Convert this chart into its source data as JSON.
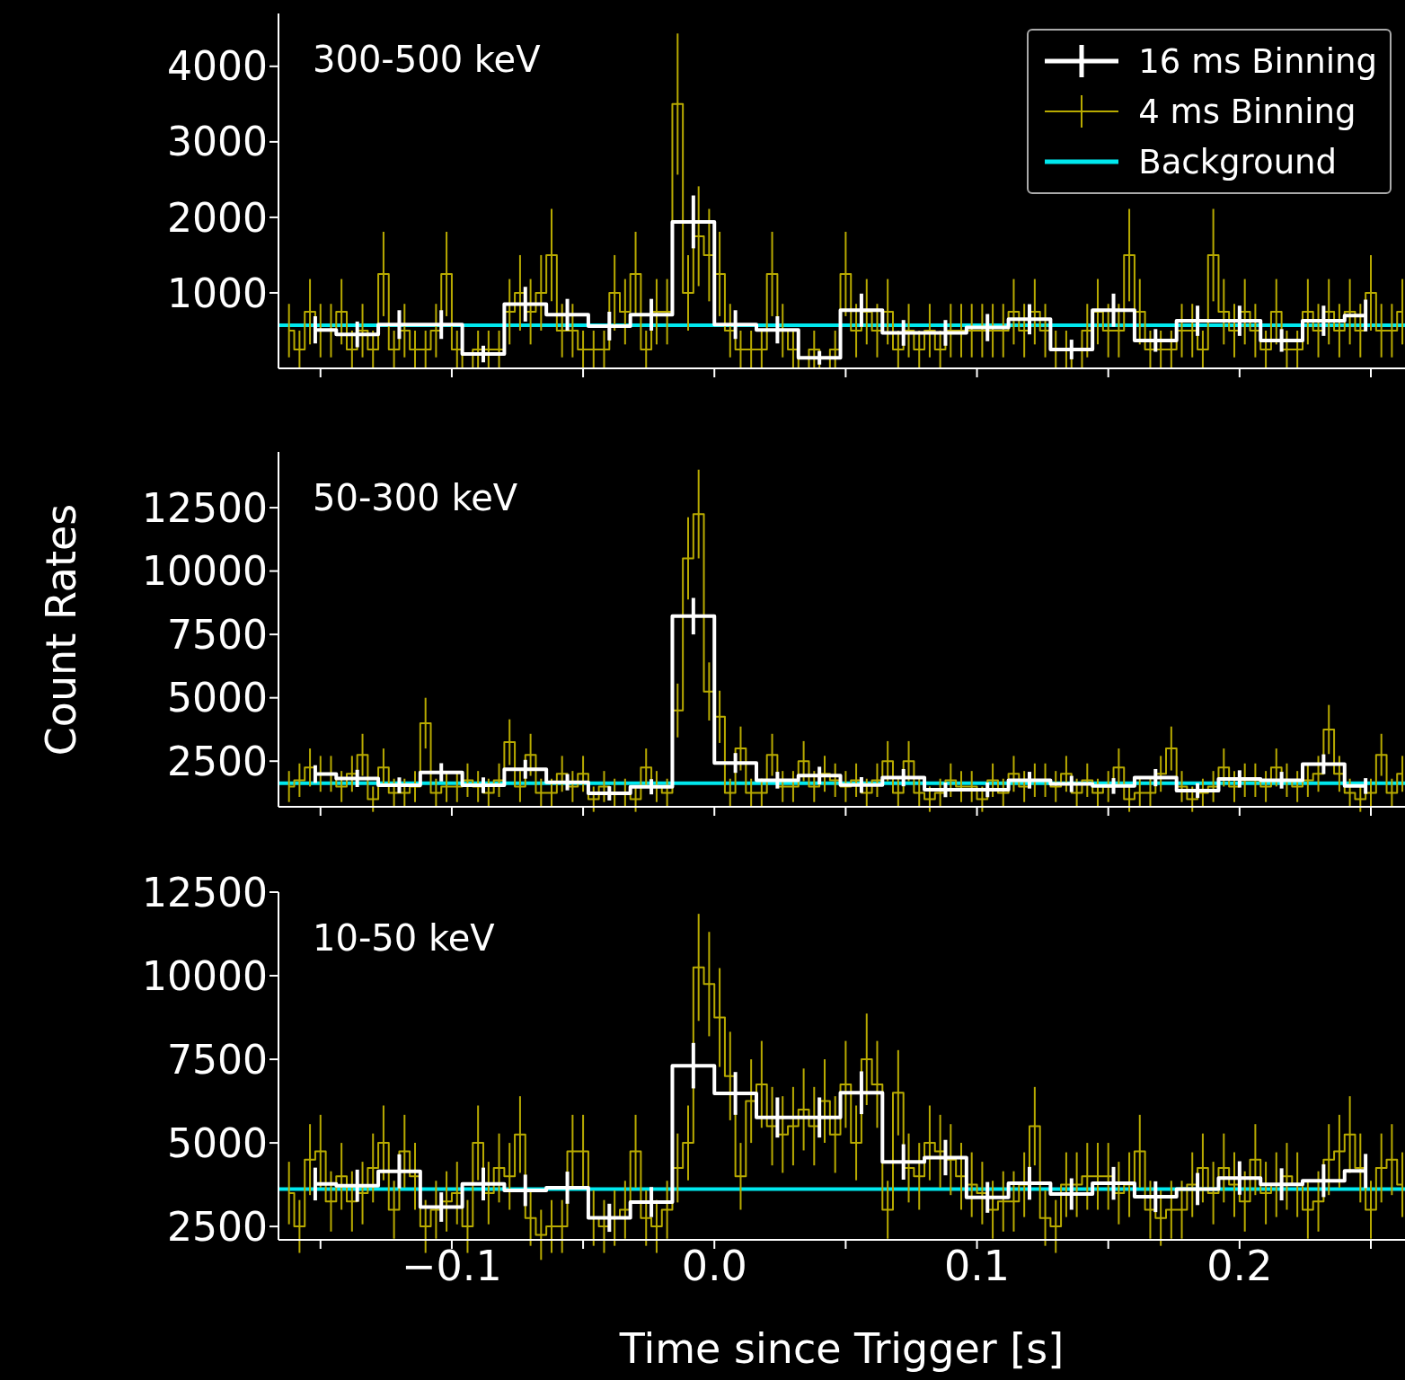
{
  "chart_data": [
    {
      "type": "step",
      "annotations": [
        "300-500 keV"
      ],
      "xlim": [
        -0.166,
        0.263
      ],
      "xticks": [
        -0.15,
        -0.1,
        -0.05,
        0,
        0.05,
        0.1,
        0.15,
        0.2,
        0.25
      ],
      "ylim": [
        0,
        4700
      ],
      "yticks": [
        1000,
        2000,
        3000,
        4000
      ],
      "tick_labels": "y",
      "legend": "top right",
      "series": [
        {
          "name": "16 ms Binning",
          "type": "step",
          "color": "#ffffff",
          "x": [
            -0.152,
            -0.136,
            -0.12,
            -0.104,
            -0.088,
            -0.072,
            -0.056,
            -0.04,
            -0.024,
            -0.008,
            0.008,
            0.024,
            0.04,
            0.056,
            0.072,
            0.088,
            0.104,
            0.12,
            0.136,
            0.152,
            0.168,
            0.184,
            0.2,
            0.216,
            0.232,
            0.248
          ],
          "values": [
            510,
            450,
            580,
            580,
            190,
            850,
            710,
            560,
            710,
            1940,
            580,
            510,
            140,
            770,
            470,
            470,
            540,
            650,
            250,
            770,
            370,
            630,
            630,
            370,
            630,
            700
          ],
          "errors": [
            180,
            170,
            190,
            190,
            110,
            230,
            210,
            190,
            210,
            350,
            190,
            180,
            90,
            220,
            170,
            170,
            180,
            200,
            130,
            220,
            150,
            200,
            200,
            150,
            200,
            210
          ]
        },
        {
          "name": "4 ms Binning",
          "type": "step",
          "color": "#b8aa00",
          "x": [
            -0.162,
            -0.158,
            -0.154,
            -0.15,
            -0.146,
            -0.142,
            -0.138,
            -0.134,
            -0.13,
            -0.126,
            -0.122,
            -0.118,
            -0.114,
            -0.11,
            -0.106,
            -0.102,
            -0.098,
            -0.094,
            -0.09,
            -0.086,
            -0.082,
            -0.078,
            -0.074,
            -0.07,
            -0.066,
            -0.062,
            -0.058,
            -0.054,
            -0.05,
            -0.046,
            -0.042,
            -0.038,
            -0.034,
            -0.03,
            -0.026,
            -0.022,
            -0.018,
            -0.014,
            -0.01,
            -0.006,
            -0.002,
            0.002,
            0.006,
            0.01,
            0.014,
            0.018,
            0.022,
            0.026,
            0.03,
            0.034,
            0.038,
            0.042,
            0.046,
            0.05,
            0.054,
            0.058,
            0.062,
            0.066,
            0.07,
            0.074,
            0.078,
            0.082,
            0.086,
            0.09,
            0.094,
            0.098,
            0.102,
            0.106,
            0.11,
            0.114,
            0.118,
            0.122,
            0.126,
            0.13,
            0.134,
            0.138,
            0.142,
            0.146,
            0.15,
            0.154,
            0.158,
            0.162,
            0.166,
            0.17,
            0.174,
            0.178,
            0.182,
            0.186,
            0.19,
            0.194,
            0.198,
            0.202,
            0.206,
            0.21,
            0.214,
            0.218,
            0.222,
            0.226,
            0.23,
            0.234,
            0.238,
            0.242,
            0.246,
            0.25,
            0.254,
            0.258,
            0.262
          ],
          "values": [
            500,
            250,
            750,
            500,
            500,
            750,
            250,
            500,
            250,
            1250,
            250,
            500,
            250,
            250,
            500,
            1250,
            250,
            0,
            250,
            250,
            250,
            750,
            1000,
            750,
            1000,
            1500,
            500,
            500,
            250,
            250,
            250,
            1000,
            750,
            1250,
            250,
            750,
            750,
            3500,
            1000,
            1750,
            1500,
            1250,
            500,
            250,
            250,
            250,
            1250,
            500,
            250,
            0,
            250,
            0,
            250,
            1250,
            500,
            750,
            500,
            750,
            250,
            500,
            250,
            500,
            250,
            500,
            500,
            500,
            500,
            500,
            500,
            750,
            500,
            750,
            500,
            250,
            250,
            0,
            500,
            750,
            500,
            500,
            1500,
            750,
            250,
            250,
            250,
            500,
            500,
            250,
            1500,
            750,
            500,
            750,
            500,
            250,
            750,
            250,
            250,
            750,
            500,
            750,
            500,
            750,
            500,
            1000,
            500,
            500,
            750
          ],
          "errors": [
            354,
            250,
            433,
            354,
            354,
            433,
            250,
            354,
            250,
            559,
            250,
            354,
            250,
            250,
            354,
            559,
            250,
            null,
            250,
            250,
            250,
            433,
            500,
            433,
            500,
            612,
            354,
            354,
            250,
            250,
            250,
            500,
            433,
            559,
            250,
            433,
            433,
            935,
            500,
            661,
            612,
            559,
            354,
            250,
            250,
            250,
            559,
            354,
            250,
            null,
            250,
            null,
            250,
            559,
            354,
            433,
            354,
            433,
            250,
            354,
            250,
            354,
            250,
            354,
            354,
            354,
            354,
            354,
            354,
            433,
            354,
            433,
            354,
            250,
            250,
            null,
            354,
            433,
            354,
            354,
            612,
            433,
            250,
            250,
            250,
            354,
            354,
            250,
            612,
            433,
            354,
            433,
            354,
            250,
            433,
            250,
            250,
            433,
            354,
            433,
            354,
            433,
            354,
            500,
            354,
            354,
            433
          ]
        },
        {
          "name": "Background",
          "type": "line",
          "color": "#00e8ee",
          "x": [
            -0.166,
            0.263
          ],
          "values": [
            570,
            570
          ]
        }
      ]
    },
    {
      "type": "step",
      "annotations": [
        "50-300 keV"
      ],
      "ylabel": "Count Rates",
      "xlim": [
        -0.166,
        0.263
      ],
      "xticks": [
        -0.15,
        -0.1,
        -0.05,
        0,
        0.05,
        0.1,
        0.15,
        0.2,
        0.25
      ],
      "ylim": [
        700,
        14700
      ],
      "yticks": [
        2500,
        5000,
        7500,
        10000,
        12500
      ],
      "tick_labels": "y",
      "series": [
        {
          "type": "step",
          "color": "#ffffff",
          "x": [
            -0.152,
            -0.136,
            -0.12,
            -0.104,
            -0.088,
            -0.072,
            -0.056,
            -0.04,
            -0.024,
            -0.008,
            0.008,
            0.024,
            0.04,
            0.056,
            0.072,
            0.088,
            0.104,
            0.12,
            0.136,
            0.152,
            0.168,
            0.184,
            0.2,
            0.216,
            0.232,
            0.248
          ],
          "values": [
            1990,
            1820,
            1550,
            2060,
            1550,
            2180,
            1670,
            1230,
            1490,
            8220,
            2430,
            1750,
            1930,
            1560,
            1850,
            1370,
            1370,
            1750,
            1600,
            1520,
            1850,
            1340,
            1800,
            1750,
            2380,
            1520
          ],
          "errors": [
            350,
            340,
            310,
            360,
            310,
            370,
            320,
            280,
            300,
            720,
            390,
            330,
            350,
            310,
            340,
            290,
            290,
            330,
            320,
            310,
            340,
            290,
            340,
            330,
            390,
            310
          ]
        },
        {
          "type": "step",
          "color": "#b8aa00",
          "x": [
            -0.162,
            -0.158,
            -0.154,
            -0.15,
            -0.146,
            -0.142,
            -0.138,
            -0.134,
            -0.13,
            -0.126,
            -0.122,
            -0.118,
            -0.114,
            -0.11,
            -0.106,
            -0.102,
            -0.098,
            -0.094,
            -0.09,
            -0.086,
            -0.082,
            -0.078,
            -0.074,
            -0.07,
            -0.066,
            -0.062,
            -0.058,
            -0.054,
            -0.05,
            -0.046,
            -0.042,
            -0.038,
            -0.034,
            -0.03,
            -0.026,
            -0.022,
            -0.018,
            -0.014,
            -0.01,
            -0.006,
            -0.002,
            0.002,
            0.006,
            0.01,
            0.014,
            0.018,
            0.022,
            0.026,
            0.03,
            0.034,
            0.038,
            0.042,
            0.046,
            0.05,
            0.054,
            0.058,
            0.062,
            0.066,
            0.07,
            0.074,
            0.078,
            0.082,
            0.086,
            0.09,
            0.094,
            0.098,
            0.102,
            0.106,
            0.11,
            0.114,
            0.118,
            0.122,
            0.126,
            0.13,
            0.134,
            0.138,
            0.142,
            0.146,
            0.15,
            0.154,
            0.158,
            0.162,
            0.166,
            0.17,
            0.174,
            0.178,
            0.182,
            0.186,
            0.19,
            0.194,
            0.198,
            0.202,
            0.206,
            0.21,
            0.214,
            0.218,
            0.222,
            0.226,
            0.23,
            0.234,
            0.238,
            0.242,
            0.246,
            0.25,
            0.254,
            0.258,
            0.262
          ],
          "values": [
            1500,
            1750,
            2250,
            2000,
            2000,
            1500,
            2000,
            2750,
            1000,
            2250,
            1250,
            1250,
            1500,
            4000,
            1250,
            1500,
            1500,
            1750,
            1500,
            1250,
            1750,
            3250,
            1500,
            2750,
            1250,
            1250,
            2000,
            1500,
            2000,
            1000,
            1500,
            1250,
            1250,
            1000,
            2250,
            1500,
            1250,
            4500,
            10500,
            12250,
            5250,
            4250,
            1250,
            3000,
            1250,
            1250,
            2750,
            1500,
            1500,
            2500,
            1500,
            2000,
            1750,
            1500,
            1750,
            1250,
            1750,
            2500,
            1250,
            2500,
            1250,
            1000,
            1250,
            1750,
            1500,
            1500,
            1000,
            1750,
            1250,
            2000,
            1500,
            1750,
            1750,
            1500,
            2000,
            1250,
            1750,
            1250,
            1500,
            2250,
            1000,
            1250,
            1250,
            2000,
            3000,
            1500,
            1000,
            1250,
            1500,
            2250,
            1500,
            1750,
            1750,
            1500,
            2250,
            1750,
            1500,
            1750,
            2000,
            3750,
            2000,
            1250,
            1000,
            1250,
            2750,
            1250,
            2000
          ],
          "errors": [
            612,
            661,
            750,
            707,
            707,
            612,
            707,
            829,
            500,
            750,
            559,
            559,
            612,
            1000,
            559,
            612,
            612,
            661,
            612,
            559,
            661,
            901,
            612,
            829,
            559,
            559,
            707,
            612,
            707,
            500,
            612,
            559,
            559,
            500,
            750,
            612,
            559,
            1061,
            1620,
            1750,
            1146,
            1031,
            559,
            866,
            559,
            559,
            829,
            612,
            612,
            791,
            612,
            707,
            661,
            612,
            661,
            559,
            661,
            791,
            559,
            791,
            559,
            500,
            559,
            661,
            612,
            612,
            500,
            661,
            559,
            707,
            612,
            661,
            661,
            612,
            707,
            559,
            661,
            559,
            612,
            750,
            500,
            559,
            559,
            707,
            866,
            612,
            500,
            559,
            612,
            750,
            612,
            661,
            661,
            612,
            750,
            661,
            612,
            661,
            707,
            968,
            707,
            559,
            500,
            559,
            829,
            559,
            707
          ]
        },
        {
          "type": "line",
          "color": "#00e8ee",
          "x": [
            -0.166,
            0.263
          ],
          "values": [
            1630,
            1630
          ]
        }
      ]
    },
    {
      "type": "step",
      "annotations": [
        "10-50 keV"
      ],
      "xlabel": "Time since Trigger [s]",
      "xlim": [
        -0.166,
        0.263
      ],
      "xticks": [
        {
          "value": -0.15,
          "label": null
        },
        {
          "value": -0.1,
          "label": "−0.1"
        },
        {
          "value": -0.05,
          "label": null
        },
        {
          "value": 0,
          "label": "0.0"
        },
        {
          "value": 0.05,
          "label": null
        },
        0.1,
        {
          "value": 0.15,
          "label": null
        },
        0.2,
        {
          "value": 0.25,
          "label": null
        }
      ],
      "ylim": [
        2100,
        12500
      ],
      "yticks": [
        2500,
        5000,
        7500,
        10000,
        12500
      ],
      "series": [
        {
          "type": "step",
          "color": "#ffffff",
          "x": [
            -0.152,
            -0.136,
            -0.12,
            -0.104,
            -0.088,
            -0.072,
            -0.056,
            -0.04,
            -0.024,
            -0.008,
            0.008,
            0.024,
            0.04,
            0.056,
            0.072,
            0.088,
            0.104,
            0.12,
            0.136,
            0.152,
            0.168,
            0.184,
            0.2,
            0.216,
            0.232,
            0.248
          ],
          "values": [
            3770,
            3720,
            4150,
            3080,
            3770,
            3580,
            3660,
            2760,
            3230,
            7310,
            6480,
            5760,
            5760,
            6500,
            4430,
            4560,
            3370,
            3790,
            3470,
            3790,
            3390,
            3620,
            3950,
            3760,
            3870,
            4160
          ],
          "errors": [
            490,
            480,
            510,
            440,
            490,
            470,
            480,
            420,
            450,
            680,
            640,
            600,
            600,
            640,
            530,
            530,
            460,
            490,
            470,
            490,
            460,
            480,
            500,
            480,
            490,
            510
          ]
        },
        {
          "type": "step",
          "color": "#b8aa00",
          "x": [
            -0.162,
            -0.158,
            -0.154,
            -0.15,
            -0.146,
            -0.142,
            -0.138,
            -0.134,
            -0.13,
            -0.126,
            -0.122,
            -0.118,
            -0.114,
            -0.11,
            -0.106,
            -0.102,
            -0.098,
            -0.094,
            -0.09,
            -0.086,
            -0.082,
            -0.078,
            -0.074,
            -0.07,
            -0.066,
            -0.062,
            -0.058,
            -0.054,
            -0.05,
            -0.046,
            -0.042,
            -0.038,
            -0.034,
            -0.03,
            -0.026,
            -0.022,
            -0.018,
            -0.014,
            -0.01,
            -0.006,
            -0.002,
            0.002,
            0.006,
            0.01,
            0.014,
            0.018,
            0.022,
            0.026,
            0.03,
            0.034,
            0.038,
            0.042,
            0.046,
            0.05,
            0.054,
            0.058,
            0.062,
            0.066,
            0.07,
            0.074,
            0.078,
            0.082,
            0.086,
            0.09,
            0.094,
            0.098,
            0.102,
            0.106,
            0.11,
            0.114,
            0.118,
            0.122,
            0.126,
            0.13,
            0.134,
            0.138,
            0.142,
            0.146,
            0.15,
            0.154,
            0.158,
            0.162,
            0.166,
            0.17,
            0.174,
            0.178,
            0.182,
            0.186,
            0.19,
            0.194,
            0.198,
            0.202,
            0.206,
            0.21,
            0.214,
            0.218,
            0.222,
            0.226,
            0.23,
            0.234,
            0.238,
            0.242,
            0.246,
            0.25,
            0.254,
            0.258,
            0.262
          ],
          "values": [
            3500,
            2500,
            4500,
            4750,
            3250,
            4000,
            3250,
            3500,
            4250,
            5000,
            3000,
            4750,
            4000,
            2500,
            3000,
            3250,
            3500,
            2500,
            5000,
            3500,
            4250,
            4000,
            5250,
            2750,
            2250,
            2500,
            2500,
            4750,
            4750,
            2750,
            2500,
            2750,
            3000,
            4750,
            2750,
            2500,
            3000,
            4250,
            5000,
            10250,
            9750,
            8750,
            7000,
            4000,
            6250,
            6750,
            5500,
            5250,
            5500,
            6000,
            5500,
            6250,
            5250,
            6750,
            5000,
            7500,
            6750,
            3000,
            6500,
            4250,
            4000,
            5000,
            4750,
            4500,
            4000,
            3750,
            3500,
            3000,
            3250,
            3250,
            3750,
            5500,
            2750,
            2500,
            3750,
            3750,
            4000,
            4000,
            4000,
            3500,
            3750,
            4750,
            3000,
            2750,
            3000,
            3000,
            3750,
            4250,
            3500,
            4250,
            3750,
            3250,
            4500,
            3500,
            3750,
            4000,
            3750,
            3000,
            3250,
            4500,
            4750,
            5250,
            4250,
            3000,
            4250,
            4500,
            3750
          ],
          "errors": [
            935,
            791,
            1061,
            1090,
            901,
            1000,
            901,
            935,
            1031,
            1118,
            866,
            1090,
            1000,
            791,
            866,
            901,
            935,
            791,
            1118,
            935,
            1031,
            1000,
            1146,
            829,
            750,
            791,
            791,
            1090,
            1090,
            829,
            791,
            829,
            866,
            1090,
            829,
            791,
            866,
            1031,
            1118,
            1601,
            1561,
            1479,
            1323,
            1000,
            1250,
            1299,
            1173,
            1146,
            1173,
            1225,
            1173,
            1250,
            1146,
            1299,
            1118,
            1369,
            1299,
            866,
            1275,
            1031,
            1000,
            1118,
            1090,
            1061,
            1000,
            968,
            935,
            866,
            901,
            901,
            968,
            1173,
            829,
            791,
            968,
            968,
            1000,
            1000,
            1000,
            935,
            968,
            1090,
            866,
            829,
            866,
            866,
            968,
            1031,
            935,
            1031,
            968,
            901,
            1061,
            935,
            968,
            1000,
            968,
            866,
            901,
            1061,
            1090,
            1146,
            1031,
            866,
            1031,
            1061,
            968
          ]
        },
        {
          "type": "line",
          "color": "#00e8ee",
          "x": [
            -0.166,
            0.263
          ],
          "values": [
            3620,
            3620
          ]
        }
      ]
    }
  ]
}
